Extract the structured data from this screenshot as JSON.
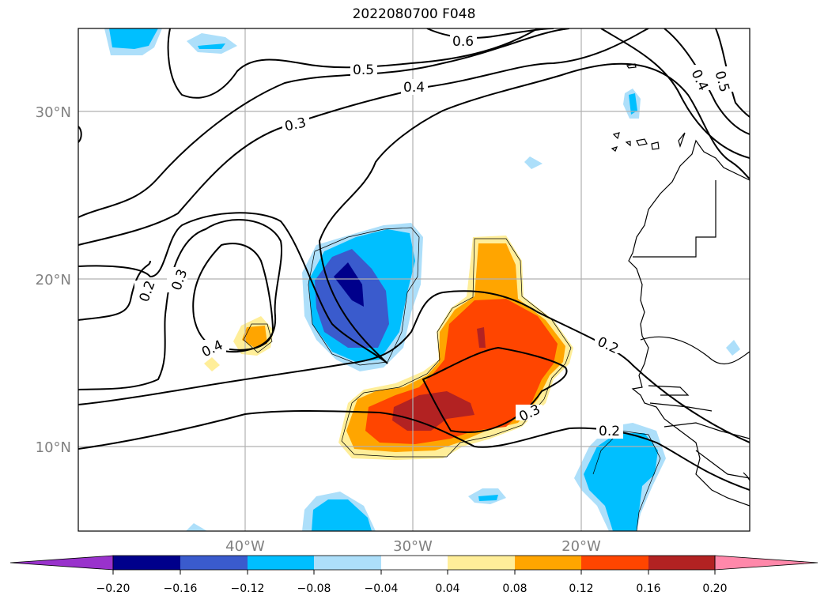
{
  "title": "2022080700 F048",
  "map": {
    "lat_labels": [
      "30°N",
      "20°N",
      "10°N"
    ],
    "lon_labels": [
      "40°W",
      "30°W",
      "20°W"
    ],
    "contour_labels": [
      "0.6",
      "0.5",
      "0.4",
      "0.3",
      "0.3",
      "0.2",
      "0.4",
      "0.2",
      "0.3",
      "0.2",
      "0.4",
      "0.5"
    ]
  },
  "colorbar": {
    "colors": [
      "#9932CC",
      "#00008B",
      "#3A5BCD",
      "#00BFFF",
      "#ADDFFA",
      "#FFFFFF",
      "#FFEE99",
      "#FFA500",
      "#FF4500",
      "#B22222",
      "#FF88AA"
    ],
    "tick_labels": [
      "−0.20",
      "−0.16",
      "−0.12",
      "−0.08",
      "−0.04",
      "0.04",
      "0.08",
      "0.12",
      "0.16",
      "0.20"
    ]
  }
}
